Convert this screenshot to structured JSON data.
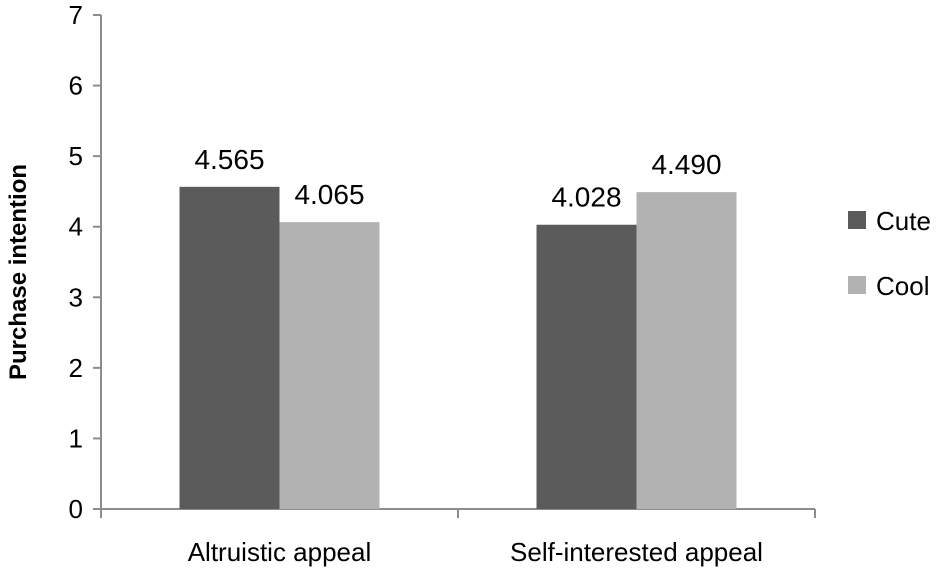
{
  "chart_data": {
    "type": "bar",
    "categories": [
      "Altruistic appeal",
      "Self-interested appeal"
    ],
    "series": [
      {
        "name": "Cute",
        "values": [
          4.565,
          4.028
        ],
        "labels": [
          "4.565",
          "4.028"
        ],
        "color": "#5b5b5b"
      },
      {
        "name": "Cool",
        "values": [
          4.065,
          4.49
        ],
        "labels": [
          "4.065",
          "4.490"
        ],
        "color": "#b2b2b2"
      }
    ],
    "title": "",
    "xlabel": "",
    "ylabel": "Purchase intention",
    "ylim": [
      0,
      7
    ],
    "yticks": [
      "0",
      "1",
      "2",
      "3",
      "4",
      "5",
      "6",
      "7"
    ],
    "grid": false,
    "legend_position": "right"
  }
}
